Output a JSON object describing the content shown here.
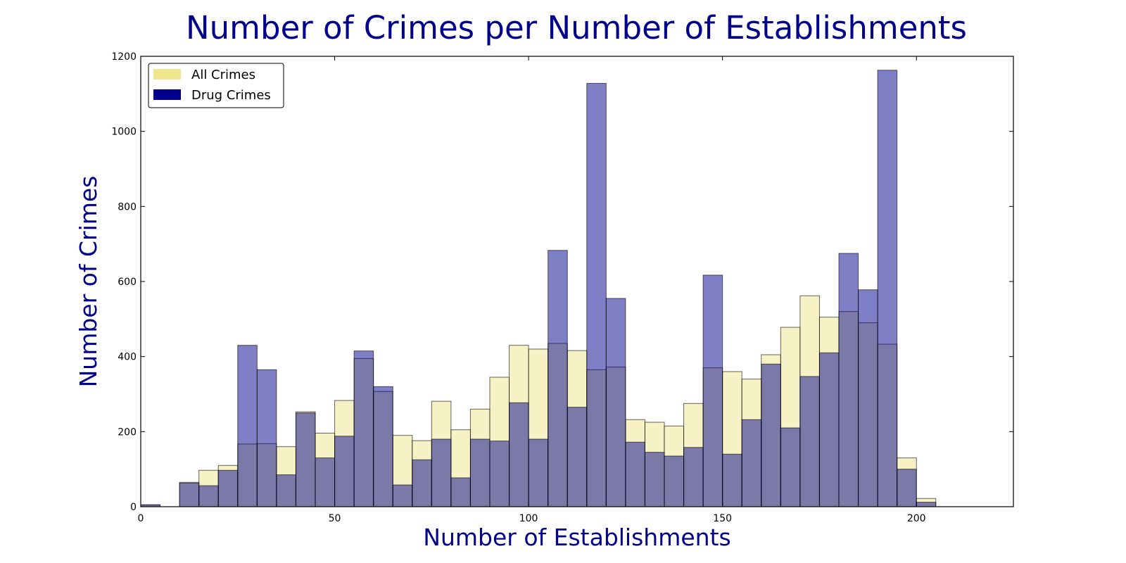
{
  "chart_data": {
    "type": "bar",
    "title": "Number of Crimes per Number of Establishments",
    "xlabel": "Number of Establishments",
    "ylabel": "Number of Crimes",
    "xlim": [
      0,
      225
    ],
    "ylim": [
      0,
      1200
    ],
    "xticks": [
      0,
      50,
      100,
      150,
      200
    ],
    "yticks": [
      0,
      200,
      400,
      600,
      800,
      1000,
      1200
    ],
    "bin_width": 5,
    "grid": false,
    "legend_position": "top-left",
    "colors": {
      "all_crimes": "#f0e68c",
      "drug_crimes": "#00008b",
      "title": "#00008b",
      "edge": "#000000"
    },
    "series": [
      {
        "name": "All Crimes",
        "bin_starts": [
          0,
          10,
          15,
          20,
          25,
          30,
          35,
          40,
          45,
          50,
          55,
          60,
          65,
          70,
          75,
          80,
          85,
          90,
          95,
          100,
          105,
          110,
          115,
          120,
          125,
          130,
          135,
          140,
          145,
          150,
          155,
          160,
          165,
          170,
          175,
          180,
          185,
          190,
          195,
          200
        ],
        "values": [
          5,
          65,
          97,
          110,
          167,
          168,
          160,
          253,
          196,
          283,
          395,
          307,
          190,
          176,
          281,
          205,
          260,
          345,
          430,
          420,
          435,
          416,
          365,
          372,
          232,
          225,
          215,
          275,
          370,
          360,
          340,
          405,
          478,
          562,
          505,
          520,
          490,
          433,
          130,
          22
        ]
      },
      {
        "name": "Drug Crimes",
        "bin_starts": [
          0,
          10,
          15,
          20,
          25,
          30,
          35,
          40,
          45,
          50,
          55,
          60,
          65,
          70,
          75,
          80,
          85,
          90,
          95,
          100,
          105,
          110,
          115,
          120,
          125,
          130,
          135,
          140,
          145,
          150,
          155,
          160,
          165,
          170,
          175,
          180,
          185,
          190,
          195,
          200
        ],
        "values": [
          5,
          63,
          56,
          97,
          430,
          365,
          85,
          250,
          130,
          188,
          415,
          320,
          58,
          125,
          180,
          77,
          180,
          175,
          277,
          180,
          683,
          265,
          1128,
          555,
          172,
          145,
          135,
          158,
          617,
          140,
          232,
          380,
          210,
          347,
          410,
          675,
          578,
          1163,
          100,
          12
        ]
      }
    ]
  }
}
